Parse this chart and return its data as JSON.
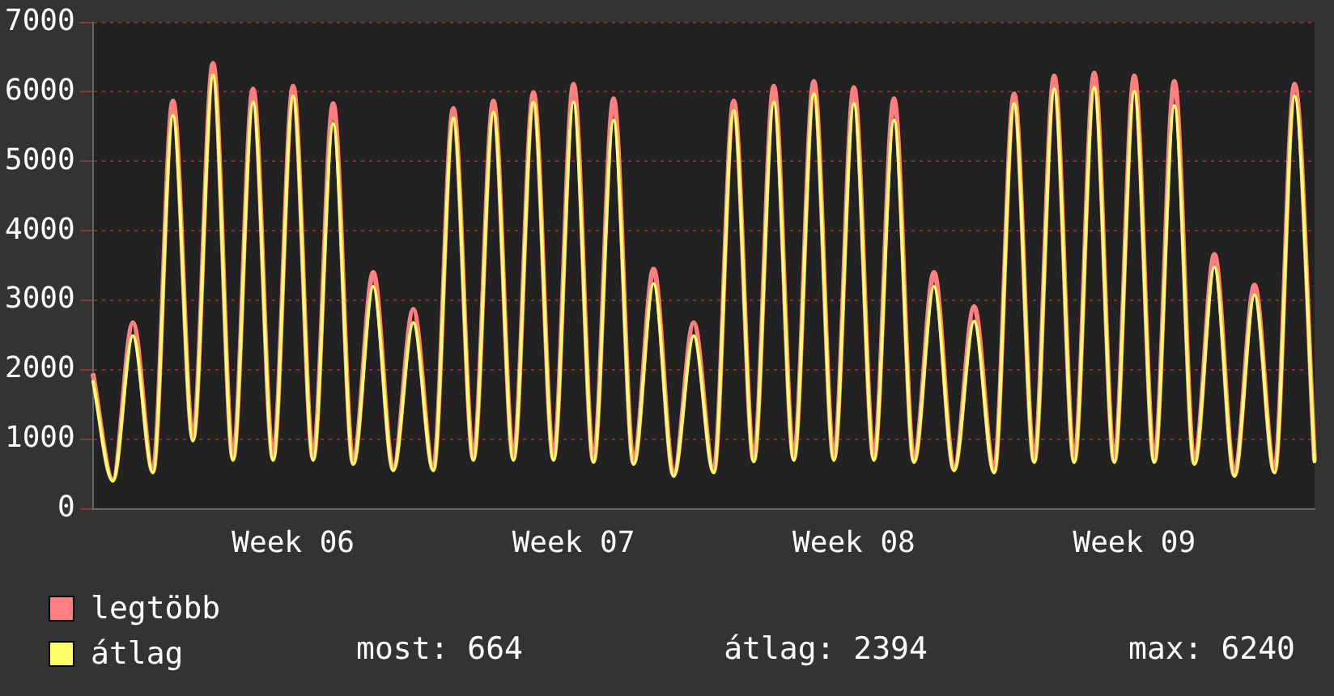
{
  "chart_data": {
    "type": "line",
    "categories": [
      null,
      null,
      null,
      null,
      null,
      null,
      null,
      null,
      null,
      null,
      "Week 06",
      null,
      null,
      null,
      null,
      null,
      null,
      null,
      null,
      null,
      null,
      null,
      null,
      null,
      "Week 07",
      null,
      null,
      null,
      null,
      null,
      null,
      null,
      null,
      null,
      null,
      null,
      null,
      null,
      "Week 08",
      null,
      null,
      null,
      null,
      null,
      null,
      null,
      null,
      null,
      null,
      null,
      null,
      null,
      "Week 09",
      null,
      null,
      null,
      null,
      null,
      null,
      null,
      null,
      null
    ],
    "series": [
      {
        "name": "legtöbb",
        "color": "#ff7f7f",
        "values": [
          1950,
          420,
          2680,
          540,
          5870,
          1010,
          6410,
          730,
          6040,
          730,
          6080,
          730,
          5830,
          660,
          3400,
          570,
          2870,
          570,
          5760,
          730,
          5870,
          730,
          5990,
          730,
          6110,
          690,
          5900,
          660,
          3450,
          490,
          2680,
          540,
          5870,
          700,
          6080,
          730,
          6150,
          730,
          6060,
          730,
          5900,
          690,
          3400,
          570,
          2910,
          540,
          5970,
          690,
          6230,
          690,
          6270,
          690,
          6230,
          690,
          6150,
          660,
          3660,
          490,
          3220,
          540,
          6110,
          690
        ]
      },
      {
        "name": "átlag",
        "color": "#ffff66",
        "values": [
          1850,
          400,
          2490,
          520,
          5660,
          980,
          6240,
          700,
          5850,
          700,
          5940,
          700,
          5540,
          640,
          3200,
          550,
          2680,
          550,
          5620,
          700,
          5710,
          700,
          5850,
          700,
          5850,
          670,
          5590,
          640,
          3240,
          470,
          2490,
          520,
          5730,
          680,
          5850,
          700,
          5970,
          700,
          5830,
          700,
          5590,
          670,
          3200,
          550,
          2700,
          520,
          5830,
          670,
          6040,
          670,
          6060,
          670,
          6010,
          670,
          5800,
          640,
          3480,
          470,
          3080,
          520,
          5940,
          660
        ]
      }
    ],
    "ylim": [
      0,
      7000
    ],
    "yticks": [
      0,
      1000,
      2000,
      3000,
      4000,
      5000,
      6000,
      7000
    ],
    "grid": "y",
    "legend": "bottom left",
    "marker": "none",
    "annotations": [
      "most: 664",
      "átlag: 2394",
      "max: 6240"
    ]
  }
}
